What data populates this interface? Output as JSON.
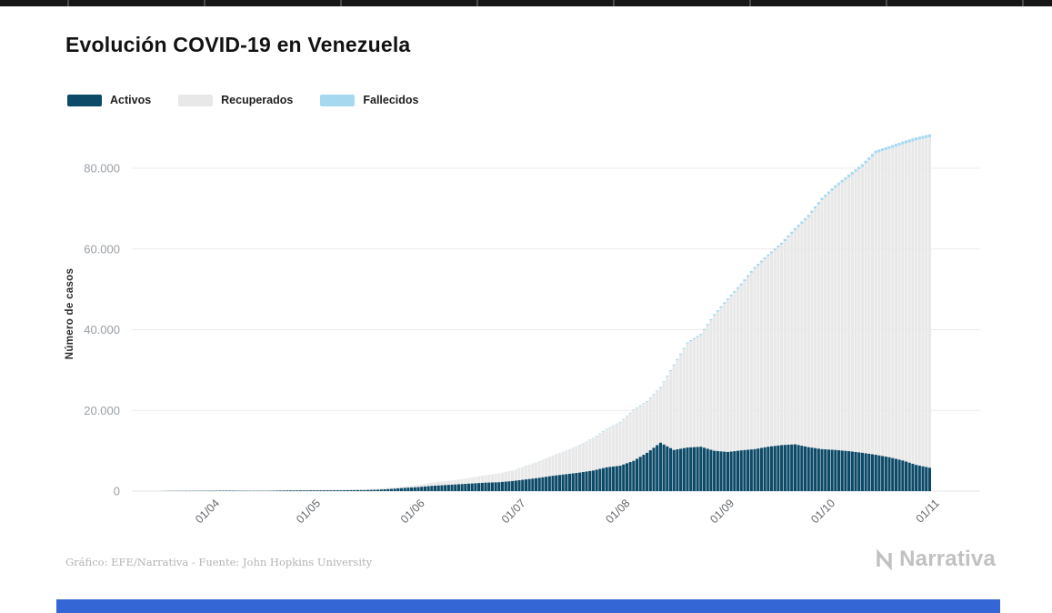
{
  "page": {
    "title": "Evolución COVID-19 en Venezuela",
    "footer_credit": "Gráfico: EFE/Narrativa - Fuente: John Hopkins University",
    "brand": "Narrativa"
  },
  "decor": {
    "top_bar_color": "#161616",
    "bottom_bar_color": "#3566d6",
    "brand_color": "#c1c1c1"
  },
  "chart_data": {
    "type": "bar",
    "stacked": true,
    "title": "Evolución COVID-19 en Venezuela",
    "xlabel": "",
    "ylabel": "Número de casos",
    "ylim": [
      0,
      88416
    ],
    "grid": true,
    "legend_position": "top-left",
    "yticks": [
      {
        "value": 0,
        "label": "0"
      },
      {
        "value": 20000,
        "label": "20.000"
      },
      {
        "value": 40000,
        "label": "40.000"
      },
      {
        "value": 60000,
        "label": "60.000"
      },
      {
        "value": 80000,
        "label": "80.000"
      }
    ],
    "xticks": [
      {
        "date": "2020-04-01",
        "label": "01/04"
      },
      {
        "date": "2020-05-01",
        "label": "01/05"
      },
      {
        "date": "2020-06-01",
        "label": "01/06"
      },
      {
        "date": "2020-07-01",
        "label": "01/07"
      },
      {
        "date": "2020-08-01",
        "label": "01/08"
      },
      {
        "date": "2020-09-01",
        "label": "01/09"
      },
      {
        "date": "2020-10-01",
        "label": "01/10"
      },
      {
        "date": "2020-11-01",
        "label": "01/11"
      }
    ],
    "dates": [
      "2020-03-16",
      "2020-03-20",
      "2020-03-24",
      "2020-03-28",
      "2020-04-01",
      "2020-04-05",
      "2020-04-09",
      "2020-04-13",
      "2020-04-17",
      "2020-04-21",
      "2020-04-25",
      "2020-04-29",
      "2020-05-03",
      "2020-05-07",
      "2020-05-11",
      "2020-05-15",
      "2020-05-19",
      "2020-05-23",
      "2020-05-27",
      "2020-05-31",
      "2020-06-04",
      "2020-06-08",
      "2020-06-12",
      "2020-06-16",
      "2020-06-20",
      "2020-06-24",
      "2020-06-28",
      "2020-07-02",
      "2020-07-06",
      "2020-07-10",
      "2020-07-14",
      "2020-07-18",
      "2020-07-22",
      "2020-07-26",
      "2020-07-30",
      "2020-08-03",
      "2020-08-07",
      "2020-08-11",
      "2020-08-15",
      "2020-08-19",
      "2020-08-23",
      "2020-08-27",
      "2020-08-31",
      "2020-09-04",
      "2020-09-08",
      "2020-09-12",
      "2020-09-16",
      "2020-09-20",
      "2020-09-24",
      "2020-09-28",
      "2020-10-02",
      "2020-10-06",
      "2020-10-10",
      "2020-10-14",
      "2020-10-18",
      "2020-10-22",
      "2020-10-26",
      "2020-10-30"
    ],
    "series": [
      {
        "name": "Activos",
        "color": "#0d4a68",
        "values": [
          30,
          55,
          70,
          85,
          100,
          110,
          85,
          70,
          80,
          150,
          170,
          180,
          190,
          200,
          230,
          260,
          350,
          550,
          800,
          1000,
          1300,
          1500,
          1700,
          1900,
          2100,
          2200,
          2500,
          2900,
          3300,
          3800,
          4200,
          4600,
          5100,
          5900,
          6300,
          7500,
          9500,
          12000,
          10200,
          10800,
          11000,
          10000,
          9700,
          10100,
          10400,
          11000,
          11400,
          11600,
          10900,
          10400,
          10200,
          9900,
          9500,
          9000,
          8400,
          7600,
          6500,
          5800
        ]
      },
      {
        "name": "Recuperados",
        "color": "#e8e8e8",
        "values": [
          3,
          15,
          20,
          25,
          40,
          42,
          77,
          110,
          115,
          125,
          138,
          141,
          161,
          171,
          174,
          189,
          258,
          322,
          400,
          496,
          770,
          951,
          1156,
          1459,
          1784,
          2128,
          2586,
          3316,
          4043,
          4920,
          5714,
          6776,
          7940,
          9423,
          10703,
          12532,
          12609,
          13589,
          20919,
          25761,
          27633,
          33508,
          37658,
          40915,
          44710,
          47190,
          49670,
          53036,
          56980,
          61687,
          64956,
          67878,
          70841,
          74685,
          76348,
          78299,
          80390,
          81850
        ]
      },
      {
        "name": "Fallecidos",
        "color": "#a6d9ef",
        "values": [
          0,
          0,
          1,
          3,
          3,
          7,
          9,
          9,
          9,
          10,
          10,
          10,
          10,
          10,
          10,
          10,
          10,
          10,
          11,
          14,
          17,
          22,
          23,
          27,
          33,
          38,
          44,
          57,
          68,
          83,
          96,
          107,
          124,
          140,
          155,
          174,
          190,
          216,
          262,
          307,
          324,
          371,
          398,
          426,
          453,
          473,
          499,
          538,
          573,
          604,
          634,
          656,
          678,
          706,
          721,
          737,
          754,
          766
        ]
      }
    ]
  }
}
